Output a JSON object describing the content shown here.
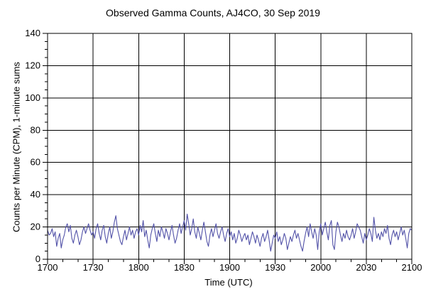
{
  "chart_data": {
    "type": "line",
    "title": "Observed Gamma Counts, AJ4CO, 30 Sep 2019",
    "xlabel": "Time (UTC)",
    "ylabel": "Counts per Minute (CPM), 1-minute sums",
    "x_ticks": [
      "1700",
      "1730",
      "1800",
      "1830",
      "1900",
      "1930",
      "2000",
      "2030",
      "2100"
    ],
    "x_major_interval_min": 30,
    "x_minor_interval_min": 10,
    "xlim_minutes": [
      0,
      240
    ],
    "y_ticks": [
      0,
      20,
      40,
      60,
      80,
      100,
      120,
      140
    ],
    "y_minor_interval": 5,
    "ylim": [
      0,
      140
    ],
    "grid": true,
    "legend": "none",
    "background_color": "#ffffff",
    "axis_color": "#000000",
    "line_color": "#5252a8",
    "series": [
      {
        "name": "gamma counts, 1-minute sums",
        "x_start_minute": 0,
        "step_minutes": 1,
        "values": [
          18,
          15,
          16,
          19,
          14,
          17,
          8,
          13,
          16,
          7,
          12,
          15,
          20,
          22,
          17,
          21,
          13,
          10,
          15,
          18,
          14,
          9,
          12,
          17,
          20,
          16,
          19,
          22,
          18,
          15,
          17,
          13,
          19,
          22,
          16,
          12,
          18,
          21,
          14,
          10,
          16,
          20,
          13,
          17,
          23,
          27,
          19,
          15,
          11,
          9,
          14,
          18,
          12,
          16,
          20,
          15,
          18,
          13,
          17,
          19,
          15,
          21,
          17,
          24,
          14,
          18,
          12,
          7,
          15,
          19,
          22,
          16,
          11,
          18,
          14,
          20,
          17,
          13,
          19,
          16,
          12,
          17,
          21,
          15,
          10,
          13,
          18,
          22,
          16,
          20,
          24,
          18,
          28,
          22,
          15,
          19,
          25,
          17,
          13,
          20,
          16,
          12,
          18,
          23,
          17,
          11,
          8,
          15,
          19,
          14,
          18,
          22,
          16,
          13,
          17,
          20,
          15,
          11,
          16,
          19,
          14,
          17,
          12,
          16,
          10,
          13,
          18,
          15,
          11,
          14,
          16,
          12,
          15,
          9,
          13,
          17,
          14,
          10,
          15,
          12,
          8,
          13,
          16,
          11,
          14,
          18,
          12,
          5,
          10,
          15,
          13,
          17,
          11,
          14,
          9,
          12,
          16,
          13,
          6,
          10,
          14,
          11,
          15,
          18,
          13,
          16,
          12,
          8,
          5,
          11,
          16,
          20,
          14,
          22,
          17,
          13,
          19,
          15,
          6,
          17,
          22,
          15,
          19,
          23,
          17,
          12,
          21,
          24,
          9,
          6,
          17,
          23,
          20,
          15,
          11,
          16,
          13,
          18,
          14,
          12,
          15,
          19,
          13,
          17,
          22,
          20,
          18,
          14,
          10,
          16,
          12,
          15,
          19,
          16,
          11,
          26,
          18,
          13,
          16,
          12,
          17,
          14,
          19,
          16,
          21,
          13,
          9,
          15,
          18,
          14,
          17,
          12,
          16,
          20,
          15,
          18,
          13,
          7,
          16,
          19,
          18
        ]
      }
    ]
  }
}
